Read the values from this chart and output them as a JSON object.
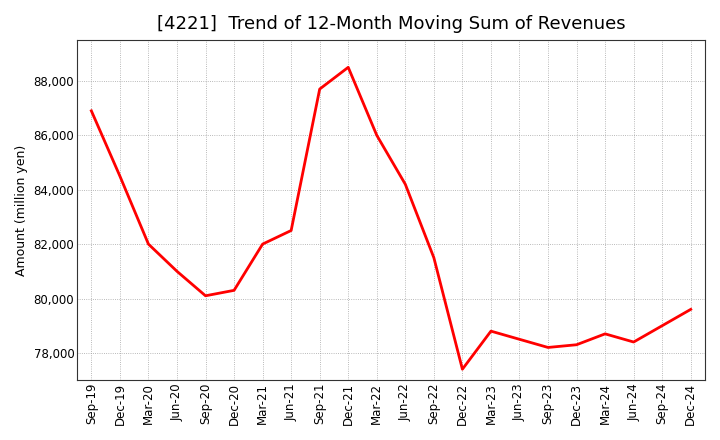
{
  "title": "[4221]  Trend of 12-Month Moving Sum of Revenues",
  "ylabel": "Amount (million yen)",
  "line_color": "#ff0000",
  "line_width": 2.0,
  "background_color": "#ffffff",
  "grid_color": "#999999",
  "labels": [
    "Sep-19",
    "Dec-19",
    "Mar-20",
    "Jun-20",
    "Sep-20",
    "Dec-20",
    "Mar-21",
    "Jun-21",
    "Sep-21",
    "Dec-21",
    "Mar-22",
    "Jun-22",
    "Sep-22",
    "Dec-22",
    "Mar-23",
    "Jun-23",
    "Sep-23",
    "Dec-23",
    "Mar-24",
    "Jun-24",
    "Sep-24",
    "Dec-24"
  ],
  "values": [
    86900,
    84500,
    82000,
    81000,
    80100,
    80300,
    82000,
    82500,
    87700,
    88500,
    86000,
    84200,
    81500,
    77400,
    78800,
    78500,
    78200,
    78300,
    78700,
    78400,
    79000,
    79600
  ],
  "ylim": [
    77000,
    89500
  ],
  "yticks": [
    78000,
    80000,
    82000,
    84000,
    86000,
    88000
  ],
  "title_fontsize": 13,
  "tick_fontsize": 8.5,
  "ylabel_fontsize": 9
}
